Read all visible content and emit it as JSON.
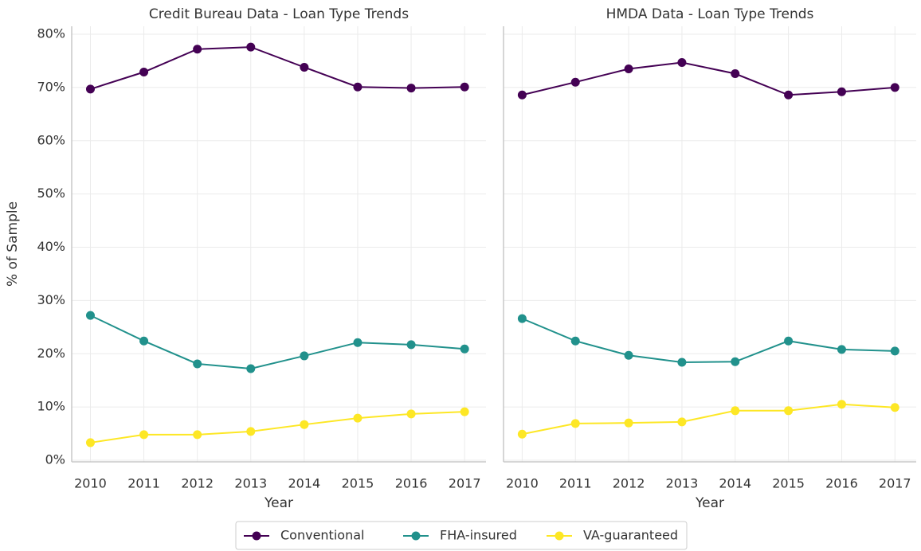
{
  "chart_data": [
    {
      "type": "line",
      "title": "Credit Bureau Data - Loan Type Trends",
      "xlabel": "Year",
      "ylabel": "% of Sample",
      "x": [
        2010,
        2011,
        2012,
        2013,
        2014,
        2015,
        2016,
        2017
      ],
      "xlim": [
        2009.65,
        2017.4
      ],
      "xticks": [
        2010,
        2011,
        2012,
        2013,
        2014,
        2015,
        2016,
        2017
      ],
      "ylim": [
        -0.3,
        81.5
      ],
      "yticks": [
        {
          "value": 0,
          "label": "0%"
        },
        {
          "value": 10,
          "label": "10%"
        },
        {
          "value": 20,
          "label": "20%"
        },
        {
          "value": 30,
          "label": "30%"
        },
        {
          "value": 40,
          "label": "40%"
        },
        {
          "value": 50,
          "label": "50%"
        },
        {
          "value": 60,
          "label": "60%"
        },
        {
          "value": 70,
          "label": "70%"
        },
        {
          "value": 80,
          "label": "80%"
        }
      ],
      "grid": true,
      "series": [
        {
          "name": "Conventional",
          "color": "#440154",
          "values": [
            69.7,
            72.9,
            77.2,
            77.6,
            73.8,
            70.1,
            69.9,
            70.1
          ]
        },
        {
          "name": "FHA-insured",
          "color": "#21918c",
          "values": [
            27.2,
            22.4,
            18.1,
            17.2,
            19.6,
            22.1,
            21.7,
            20.9
          ]
        },
        {
          "name": "VA-guaranteed",
          "color": "#fde725",
          "values": [
            3.3,
            4.8,
            4.8,
            5.4,
            6.7,
            7.9,
            8.7,
            9.1
          ]
        }
      ],
      "legend": "bottom"
    },
    {
      "type": "line",
      "title": "HMDA Data - Loan Type Trends",
      "xlabel": "Year",
      "x": [
        2010,
        2011,
        2012,
        2013,
        2014,
        2015,
        2016,
        2017
      ],
      "xlim": [
        2009.65,
        2017.4
      ],
      "xticks": [
        2010,
        2011,
        2012,
        2013,
        2014,
        2015,
        2016,
        2017
      ],
      "ylim": [
        -0.3,
        81.5
      ],
      "yticks": [
        0,
        10,
        20,
        30,
        40,
        50,
        60,
        70,
        80
      ],
      "grid": true,
      "series": [
        {
          "color": "#440154",
          "values": [
            68.6,
            71.0,
            73.5,
            74.7,
            72.6,
            68.6,
            69.2,
            70.0
          ]
        },
        {
          "color": "#21918c",
          "values": [
            26.6,
            22.4,
            19.7,
            18.4,
            18.5,
            22.4,
            20.8,
            20.5
          ]
        },
        {
          "color": "#fde725",
          "values": [
            4.9,
            6.9,
            7.0,
            7.2,
            9.3,
            9.3,
            10.5,
            9.9
          ]
        }
      ]
    }
  ]
}
